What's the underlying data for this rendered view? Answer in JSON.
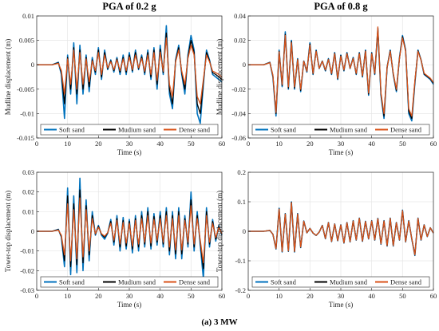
{
  "caption": "(a) 3 MW",
  "colors": {
    "soft": "#0072BD",
    "medium": "#000000",
    "dense": "#D95319",
    "grid": "#e6e6e6"
  },
  "chart_data": [
    {
      "type": "line",
      "title": "PGA of 0.2 g",
      "xlabel": "Time (s)",
      "ylabel": "Mudline displacement (m)",
      "xlim": [
        0,
        60
      ],
      "ylim": [
        -0.015,
        0.01
      ],
      "xticks": [
        "0",
        "10",
        "20",
        "30",
        "40",
        "50",
        "60"
      ],
      "yticks": [
        "-0.015",
        "-0.01",
        "-0.005",
        "0",
        "0.005",
        "0.01"
      ],
      "grid": true,
      "legend": [
        "Soft sand",
        "Mudium sand",
        "Dense sand"
      ],
      "legend_position": "bottom",
      "x": [
        0,
        5,
        7,
        8,
        9,
        10,
        11,
        12,
        13,
        14,
        15,
        16,
        17,
        18,
        19,
        20,
        21,
        22,
        23,
        24,
        25,
        26,
        27,
        28,
        29,
        30,
        31,
        32,
        33,
        34,
        35,
        36,
        37,
        38,
        39,
        40,
        41,
        42,
        43,
        44,
        45,
        46,
        47,
        48,
        49,
        50,
        51,
        52,
        53,
        54,
        55,
        56,
        57,
        58,
        59,
        60
      ],
      "series": [
        {
          "name": "Soft sand",
          "values": [
            0,
            0,
            0.0005,
            -0.002,
            -0.011,
            0.002,
            -0.006,
            0.0045,
            -0.008,
            0.004,
            -0.006,
            0.002,
            -0.0055,
            0.0015,
            -0.002,
            0.0035,
            -0.003,
            0.003,
            -0.001,
            0.001,
            -0.0015,
            0.0015,
            -0.002,
            0.002,
            -0.002,
            0.0025,
            -0.0015,
            0.003,
            -0.001,
            0.002,
            -0.002,
            0.003,
            -0.003,
            0.0035,
            -0.005,
            0.004,
            -0.002,
            0.008,
            -0.006,
            -0.009,
            0.001,
            0.004,
            -0.002,
            -0.006,
            0.002,
            0.006,
            0.003,
            -0.01,
            -0.012,
            -0.004,
            0.003,
            0.001,
            -0.002,
            -0.0025,
            -0.003,
            -0.0035
          ]
        },
        {
          "name": "Mudium sand",
          "values": [
            0,
            0,
            0.0004,
            -0.0015,
            -0.008,
            0.0015,
            -0.005,
            0.0035,
            -0.006,
            0.003,
            -0.005,
            0.0015,
            -0.0045,
            0.001,
            -0.0015,
            0.003,
            -0.0025,
            0.0025,
            -0.0008,
            0.0008,
            -0.0012,
            0.0012,
            -0.0015,
            0.0015,
            -0.0015,
            0.002,
            -0.0012,
            0.0025,
            -0.0008,
            0.0016,
            -0.0016,
            0.0025,
            -0.0025,
            0.003,
            -0.004,
            0.0032,
            -0.0016,
            0.0065,
            -0.005,
            -0.008,
            0.0008,
            0.0035,
            -0.0016,
            -0.005,
            0.0016,
            0.005,
            0.0025,
            -0.008,
            -0.01,
            -0.0035,
            0.0025,
            0.0008,
            -0.0016,
            -0.002,
            -0.0025,
            -0.003
          ]
        },
        {
          "name": "Dense sand",
          "values": [
            0,
            0,
            0.0003,
            -0.0012,
            -0.006,
            0.0012,
            -0.004,
            0.003,
            -0.005,
            0.0025,
            -0.004,
            0.0012,
            -0.0035,
            0.0008,
            -0.0012,
            0.0025,
            -0.002,
            0.002,
            -0.0006,
            0.0006,
            -0.001,
            0.001,
            -0.0012,
            0.0012,
            -0.0012,
            0.0016,
            -0.001,
            0.002,
            -0.0006,
            0.0013,
            -0.0013,
            0.002,
            -0.002,
            0.0025,
            -0.0032,
            0.0026,
            -0.0013,
            0.0055,
            -0.004,
            -0.0065,
            0.0006,
            0.003,
            -0.0013,
            -0.004,
            0.0013,
            0.004,
            0.002,
            -0.0065,
            -0.008,
            -0.003,
            0.002,
            0.0006,
            -0.0013,
            -0.0016,
            -0.002,
            -0.0025
          ]
        }
      ]
    },
    {
      "type": "line",
      "title": "PGA of 0.8 g",
      "xlabel": "Time (s)",
      "ylabel": "Mudline displacement (m)",
      "xlim": [
        0,
        60
      ],
      "ylim": [
        -0.06,
        0.04
      ],
      "xticks": [
        "0",
        "10",
        "20",
        "30",
        "40",
        "50",
        "60"
      ],
      "yticks": [
        "-0.06",
        "-0.04",
        "-0.02",
        "0",
        "0.02",
        "0.04"
      ],
      "grid": true,
      "legend": [
        "Soft sand",
        "Mudium sand",
        "Dense sand"
      ],
      "legend_position": "bottom",
      "x": [
        0,
        5,
        7,
        8,
        9,
        10,
        11,
        12,
        13,
        14,
        15,
        16,
        17,
        18,
        19,
        20,
        21,
        22,
        23,
        24,
        25,
        26,
        27,
        28,
        29,
        30,
        31,
        32,
        33,
        34,
        35,
        36,
        37,
        38,
        39,
        40,
        41,
        42,
        43,
        44,
        45,
        46,
        47,
        48,
        49,
        50,
        51,
        52,
        53,
        54,
        55,
        56,
        57,
        58,
        59,
        60
      ],
      "series": [
        {
          "name": "Soft sand",
          "values": [
            0,
            0,
            0.002,
            -0.01,
            -0.042,
            0.012,
            -0.018,
            0.027,
            -0.02,
            0.02,
            -0.02,
            0.005,
            -0.022,
            0.003,
            -0.006,
            0.018,
            -0.008,
            0.012,
            -0.003,
            0.003,
            -0.005,
            0.005,
            -0.008,
            0.01,
            -0.012,
            0.008,
            -0.005,
            0.01,
            -0.003,
            0.006,
            -0.008,
            0.01,
            -0.01,
            0.012,
            -0.025,
            0.01,
            -0.008,
            0.03,
            -0.025,
            -0.044,
            -0.002,
            0.012,
            -0.008,
            -0.022,
            0.006,
            0.024,
            0.012,
            -0.04,
            -0.046,
            -0.015,
            0.012,
            0.004,
            -0.008,
            -0.01,
            -0.012,
            -0.016
          ]
        },
        {
          "name": "Mudium sand",
          "values": [
            0,
            0,
            0.0018,
            -0.009,
            -0.04,
            0.011,
            -0.017,
            0.025,
            -0.019,
            0.019,
            -0.019,
            0.0045,
            -0.021,
            0.003,
            -0.0055,
            0.017,
            -0.0075,
            0.0115,
            -0.003,
            0.003,
            -0.0045,
            0.0045,
            -0.0075,
            0.0095,
            -0.0115,
            0.0075,
            -0.0045,
            0.0095,
            -0.003,
            0.0055,
            -0.0075,
            0.0095,
            -0.0095,
            0.0115,
            -0.024,
            0.0095,
            -0.0075,
            0.029,
            -0.024,
            -0.042,
            -0.002,
            0.0115,
            -0.0075,
            -0.021,
            0.0055,
            0.023,
            0.0115,
            -0.038,
            -0.044,
            -0.014,
            0.0115,
            0.004,
            -0.0075,
            -0.0095,
            -0.0115,
            -0.015
          ]
        },
        {
          "name": "Dense sand",
          "values": [
            0,
            0,
            0.0017,
            -0.0085,
            -0.039,
            0.0105,
            -0.016,
            0.024,
            -0.018,
            0.018,
            -0.018,
            0.0042,
            -0.02,
            0.0028,
            -0.0052,
            0.016,
            -0.007,
            0.011,
            -0.0028,
            0.0028,
            -0.0042,
            0.0042,
            -0.007,
            0.009,
            -0.011,
            0.007,
            -0.0042,
            0.009,
            -0.0028,
            0.0052,
            -0.007,
            0.009,
            -0.009,
            0.011,
            -0.023,
            0.009,
            -0.007,
            0.031,
            -0.023,
            -0.04,
            -0.002,
            0.011,
            -0.007,
            -0.02,
            0.0052,
            0.022,
            0.011,
            -0.036,
            -0.042,
            -0.013,
            0.011,
            0.0038,
            -0.007,
            -0.009,
            -0.011,
            -0.0145
          ]
        }
      ]
    },
    {
      "type": "line",
      "title": "",
      "xlabel": "Time (s)",
      "ylabel": "Tower-top displacement (m)",
      "xlim": [
        0,
        60
      ],
      "ylim": [
        -0.03,
        0.03
      ],
      "xticks": [
        "0",
        "10",
        "20",
        "30",
        "40",
        "50",
        "60"
      ],
      "yticks": [
        "-0.03",
        "-0.02",
        "-0.01",
        "0",
        "0.01",
        "0.02",
        "0.03"
      ],
      "grid": true,
      "legend": [
        "Soft sand",
        "Mudium sand",
        "Dense sand"
      ],
      "legend_position": "bottom",
      "x": [
        0,
        5,
        7,
        8,
        9,
        10,
        11,
        12,
        13,
        14,
        15,
        16,
        17,
        18,
        19,
        20,
        21,
        22,
        23,
        24,
        25,
        26,
        27,
        28,
        29,
        30,
        31,
        32,
        33,
        34,
        35,
        36,
        37,
        38,
        39,
        40,
        41,
        42,
        43,
        44,
        45,
        46,
        47,
        48,
        49,
        50,
        51,
        52,
        53,
        54,
        55,
        56,
        57,
        58,
        59,
        60
      ],
      "series": [
        {
          "name": "Soft sand",
          "values": [
            0,
            0,
            0.001,
            -0.003,
            -0.018,
            0.022,
            -0.022,
            0.018,
            -0.021,
            0.027,
            -0.02,
            0.016,
            -0.015,
            0.01,
            -0.002,
            0.003,
            -0.002,
            -0.004,
            -0.001,
            0.006,
            -0.007,
            0.008,
            -0.01,
            0.007,
            -0.009,
            0.006,
            -0.011,
            0.008,
            -0.01,
            0.01,
            -0.008,
            0.012,
            -0.009,
            0.009,
            -0.007,
            0.01,
            -0.008,
            0.012,
            -0.012,
            0.01,
            -0.014,
            0.012,
            -0.014,
            0.008,
            -0.008,
            0.02,
            -0.01,
            0.01,
            -0.007,
            -0.024,
            0.012,
            -0.008,
            0.006,
            -0.005,
            0.003,
            -0.002
          ]
        },
        {
          "name": "Mudium sand",
          "values": [
            0,
            0,
            0.0008,
            -0.0025,
            -0.015,
            0.018,
            -0.018,
            0.014,
            -0.017,
            0.021,
            -0.016,
            0.013,
            -0.012,
            0.008,
            -0.0015,
            0.0025,
            -0.0015,
            -0.003,
            -0.0008,
            0.005,
            -0.0055,
            0.0065,
            -0.008,
            0.0055,
            -0.0075,
            0.005,
            -0.009,
            0.0065,
            -0.008,
            0.008,
            -0.0065,
            0.01,
            -0.0075,
            0.0075,
            -0.0055,
            0.008,
            -0.0065,
            0.01,
            -0.01,
            0.008,
            -0.0115,
            0.01,
            -0.0115,
            0.0065,
            -0.0065,
            0.016,
            -0.008,
            0.008,
            -0.0055,
            -0.019,
            0.01,
            -0.0065,
            0.005,
            -0.004,
            0.0025,
            -0.0015
          ]
        },
        {
          "name": "Dense sand",
          "values": [
            0,
            0,
            0.0006,
            -0.002,
            -0.012,
            0.014,
            -0.015,
            0.011,
            -0.014,
            0.017,
            -0.013,
            0.011,
            -0.01,
            0.0065,
            -0.0012,
            0.002,
            -0.0012,
            -0.0025,
            -0.0006,
            0.004,
            -0.0045,
            0.0055,
            -0.0065,
            0.0045,
            -0.006,
            0.004,
            -0.0075,
            0.0055,
            -0.0065,
            0.0065,
            -0.0055,
            0.008,
            -0.006,
            0.006,
            -0.0045,
            0.0065,
            -0.0055,
            0.008,
            -0.008,
            0.0065,
            -0.0095,
            0.008,
            -0.0095,
            0.0055,
            -0.0055,
            0.013,
            -0.0065,
            0.0065,
            -0.0045,
            -0.016,
            0.008,
            -0.0055,
            0.004,
            -0.0032,
            0.002,
            -0.0012
          ]
        }
      ]
    },
    {
      "type": "line",
      "title": "",
      "xlabel": "Time (s)",
      "ylabel": "Tower-top displacement (m)",
      "xlim": [
        0,
        60
      ],
      "ylim": [
        -0.2,
        0.2
      ],
      "xticks": [
        "0",
        "10",
        "20",
        "30",
        "40",
        "50",
        "60"
      ],
      "yticks": [
        "-0.2",
        "-0.1",
        "0",
        "0.1",
        "0.2"
      ],
      "grid": true,
      "legend": [
        "Soft sand",
        "Mudium sand",
        "Dense sand"
      ],
      "legend_position": "bottom",
      "x": [
        0,
        5,
        7,
        8,
        9,
        10,
        11,
        12,
        13,
        14,
        15,
        16,
        17,
        18,
        19,
        20,
        21,
        22,
        23,
        24,
        25,
        26,
        27,
        28,
        29,
        30,
        31,
        32,
        33,
        34,
        35,
        36,
        37,
        38,
        39,
        40,
        41,
        42,
        43,
        44,
        45,
        46,
        47,
        48,
        49,
        50,
        51,
        52,
        53,
        54,
        55,
        56,
        57,
        58,
        59,
        60
      ],
      "series": [
        {
          "name": "Soft sand",
          "values": [
            0,
            0,
            0.003,
            -0.01,
            -0.06,
            0.078,
            -0.07,
            0.06,
            -0.068,
            0.1,
            -0.07,
            0.06,
            -0.055,
            0.035,
            -0.005,
            0.01,
            -0.006,
            -0.014,
            -0.003,
            0.02,
            -0.025,
            0.03,
            -0.035,
            0.025,
            -0.032,
            0.022,
            -0.04,
            0.03,
            -0.036,
            0.036,
            -0.03,
            0.045,
            -0.034,
            0.034,
            -0.026,
            0.036,
            -0.03,
            0.044,
            -0.044,
            0.036,
            -0.05,
            0.045,
            -0.05,
            0.03,
            -0.03,
            0.072,
            -0.036,
            0.036,
            -0.026,
            -0.082,
            0.045,
            -0.03,
            0.022,
            -0.018,
            0.012,
            -0.006
          ]
        },
        {
          "name": "Mudium sand",
          "values": [
            0,
            0,
            0.0029,
            -0.0098,
            -0.059,
            0.076,
            -0.069,
            0.059,
            -0.067,
            0.098,
            -0.069,
            0.059,
            -0.054,
            0.034,
            -0.005,
            0.0098,
            -0.0059,
            -0.0137,
            -0.0029,
            0.0196,
            -0.0245,
            0.0294,
            -0.0343,
            0.0245,
            -0.0314,
            0.0216,
            -0.0392,
            0.0294,
            -0.0353,
            0.0353,
            -0.0294,
            0.0441,
            -0.0333,
            0.0333,
            -0.0255,
            0.0353,
            -0.0294,
            0.0431,
            -0.0431,
            0.0353,
            -0.049,
            0.0441,
            -0.049,
            0.0294,
            -0.0294,
            0.0706,
            -0.0353,
            0.0353,
            -0.0255,
            -0.0804,
            0.0441,
            -0.0294,
            0.0216,
            -0.0176,
            0.0118,
            -0.0059
          ]
        },
        {
          "name": "Dense sand",
          "values": [
            0,
            0,
            0.0029,
            -0.0097,
            -0.058,
            0.075,
            -0.068,
            0.058,
            -0.066,
            0.097,
            -0.068,
            0.058,
            -0.053,
            0.034,
            -0.0049,
            0.0097,
            -0.0058,
            -0.0136,
            -0.0029,
            0.0194,
            -0.0242,
            0.0291,
            -0.034,
            0.0242,
            -0.031,
            0.0213,
            -0.0388,
            0.0291,
            -0.0349,
            0.0349,
            -0.0291,
            0.0437,
            -0.033,
            0.033,
            -0.0252,
            0.0349,
            -0.0291,
            0.0427,
            -0.0427,
            0.0349,
            -0.0485,
            0.0437,
            -0.0485,
            0.0291,
            -0.0291,
            0.0698,
            -0.0349,
            0.0349,
            -0.0252,
            -0.0795,
            0.0437,
            -0.0291,
            0.0213,
            -0.0175,
            0.0116,
            -0.0058
          ]
        }
      ]
    }
  ]
}
